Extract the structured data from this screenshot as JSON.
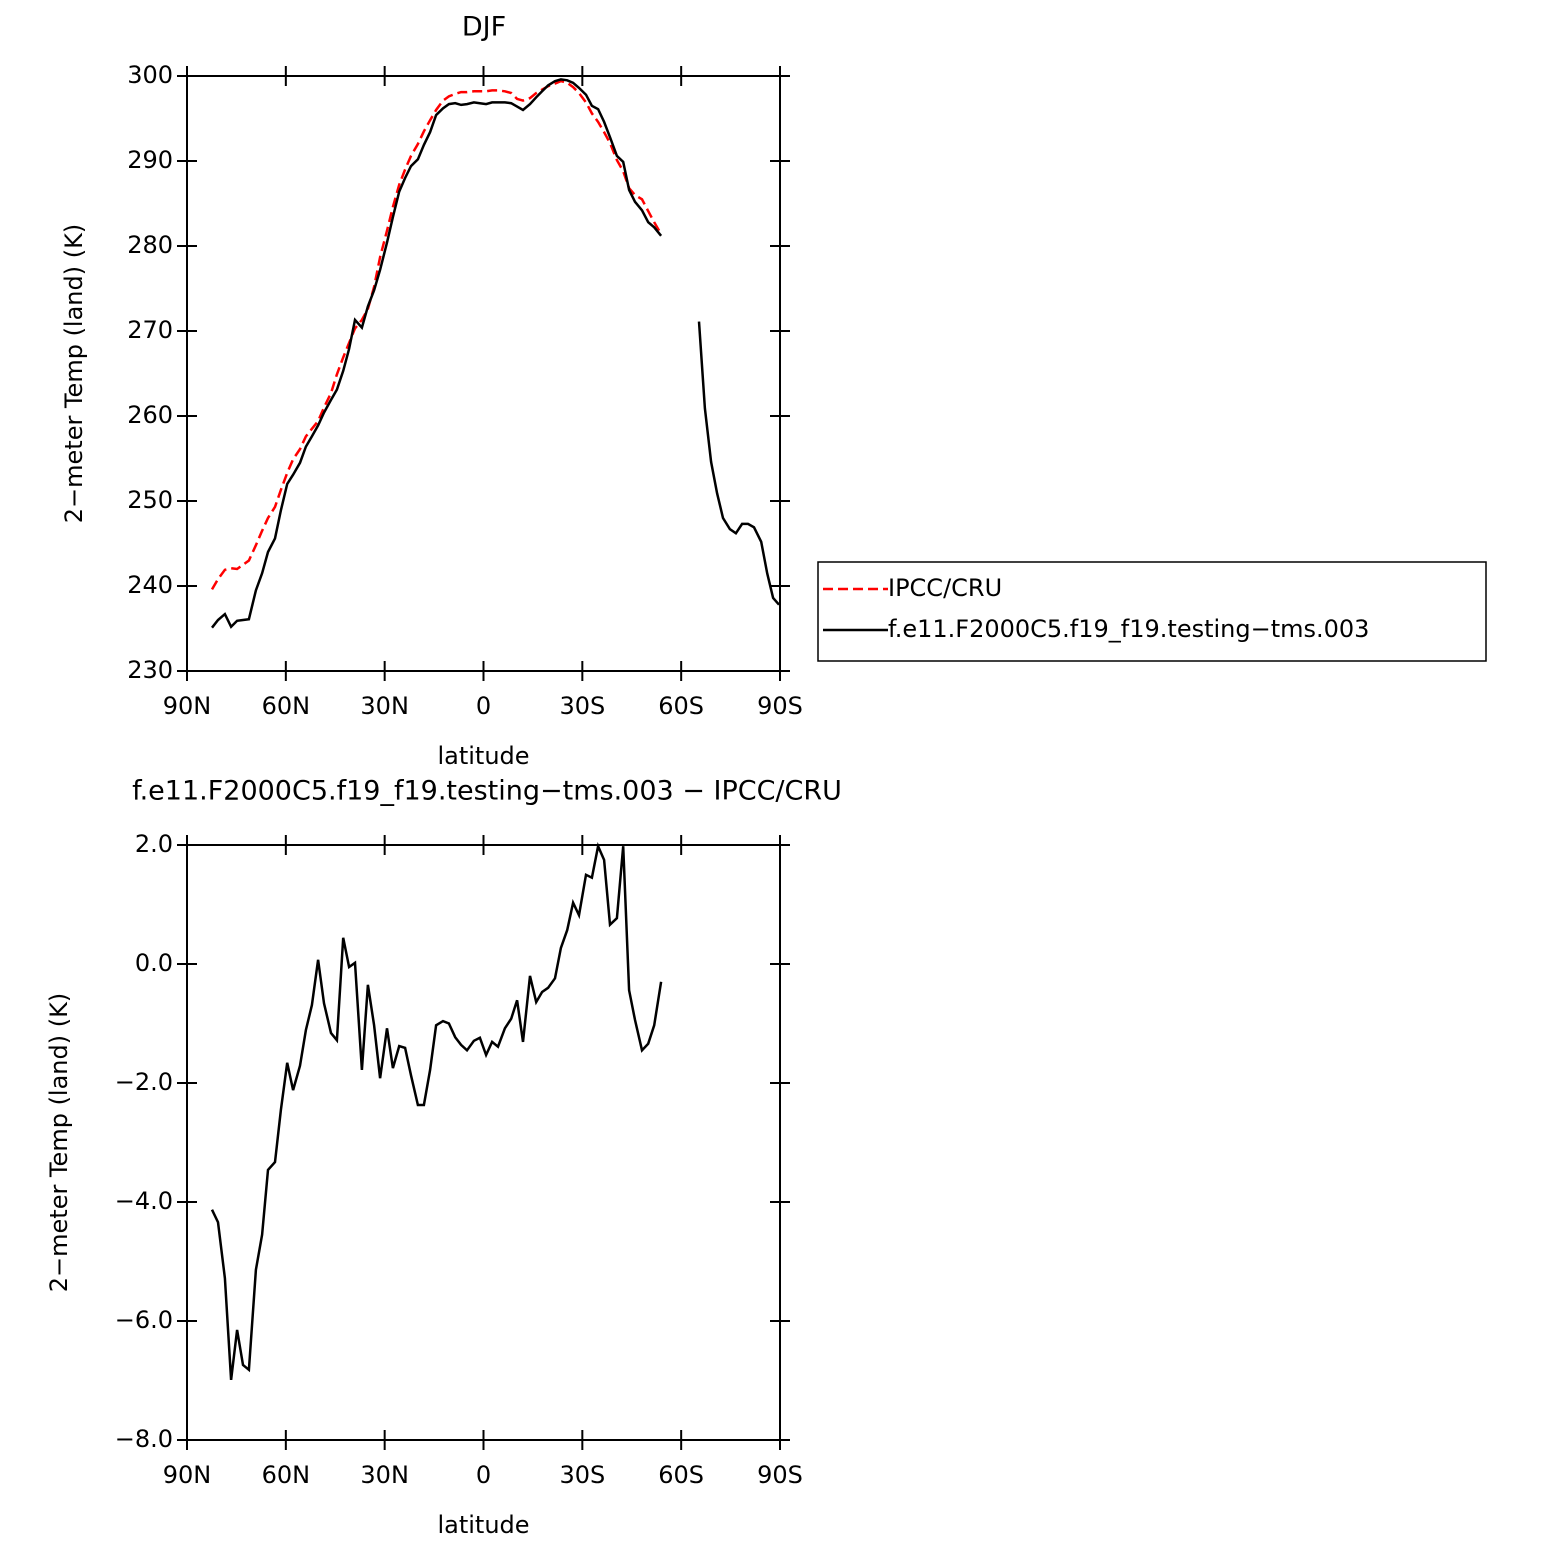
{
  "chart_data": [
    {
      "type": "line",
      "title": "DJF",
      "xlabel": "latitude",
      "ylabel": "2−meter Temp (land) (K)",
      "x": [
        82.4,
        80.6,
        78.5,
        76.6,
        74.8,
        73.0,
        71.2,
        69.1,
        67.2,
        65.4,
        63.3,
        61.5,
        59.6,
        57.8,
        55.7,
        53.9,
        52.1,
        50.2,
        48.4,
        46.3,
        44.5,
        42.6,
        40.8,
        39.0,
        36.9,
        35.1,
        33.2,
        31.4,
        29.3,
        27.5,
        25.6,
        23.8,
        22.0,
        19.9,
        18.1,
        16.2,
        14.4,
        12.3,
        10.5,
        8.6,
        6.8,
        5.0,
        2.9,
        1.1,
        -0.8,
        -2.6,
        -4.4,
        -6.5,
        -8.4,
        -10.2,
        -12.0,
        -14.1,
        -16.0,
        -17.8,
        -19.6,
        -21.7,
        -23.5,
        -25.4,
        -27.2,
        -29.0,
        -31.1,
        -32.9,
        -34.8,
        -36.6,
        -38.4,
        -40.5,
        -42.4,
        -44.2,
        -46.0,
        -48.1,
        -50.0,
        -51.8,
        -53.9,
        -59.6,
        -65.4,
        -67.2,
        -69.1,
        -70.9,
        -72.7,
        -74.8,
        -76.6,
        -78.5,
        -80.3,
        -82.1,
        -84.3,
        -86.1,
        -87.9,
        -89.7
      ],
      "series": [
        {
          "name": "IPCC/CRU",
          "color": "#ff0000",
          "linestyle": "dashed",
          "values": [
            239.6,
            240.8,
            241.9,
            242.1,
            242.0,
            242.5,
            243.0,
            244.8,
            246.5,
            248.0,
            249.3,
            251.3,
            253.3,
            254.9,
            256.1,
            257.6,
            258.5,
            259.4,
            261.0,
            262.7,
            264.9,
            266.9,
            268.6,
            270.3,
            271.3,
            272.6,
            275.2,
            278.7,
            281.8,
            284.6,
            287.2,
            289.0,
            290.6,
            292.0,
            293.5,
            294.8,
            296.0,
            297.1,
            297.6,
            297.9,
            298.1,
            298.1,
            298.2,
            298.2,
            298.2,
            298.3,
            298.3,
            298.2,
            298.0,
            297.3,
            297.1,
            297.4,
            298.0,
            298.4,
            298.8,
            299.1,
            299.4,
            299.2,
            298.7,
            298.0,
            296.9,
            295.6,
            294.6,
            293.4,
            292.1,
            290.1,
            288.8,
            286.8,
            286.0,
            285.5,
            284.1,
            282.8,
            281.4,
            null,
            null,
            null,
            null,
            null,
            null,
            null,
            null,
            null,
            null,
            null,
            null,
            null,
            null,
            null
          ]
        },
        {
          "name": "f.e11.F2000C5.f19_f19.testing−tms.003",
          "color": "#000000",
          "linestyle": "solid",
          "values": [
            235.1,
            236.0,
            236.7,
            235.2,
            235.9,
            236.0,
            236.1,
            239.5,
            241.5,
            244.0,
            245.6,
            248.9,
            252.0,
            253.1,
            254.5,
            256.4,
            257.6,
            258.9,
            260.4,
            261.9,
            263.1,
            265.3,
            267.9,
            271.3,
            270.4,
            272.9,
            274.8,
            277.2,
            280.4,
            283.4,
            286.4,
            288.0,
            289.4,
            290.2,
            291.9,
            293.4,
            295.4,
            296.2,
            296.7,
            296.8,
            296.6,
            296.7,
            296.9,
            296.8,
            296.7,
            296.9,
            296.9,
            296.9,
            296.8,
            296.4,
            296.0,
            296.7,
            297.5,
            298.2,
            298.9,
            299.4,
            299.6,
            299.5,
            299.2,
            298.6,
            297.8,
            296.5,
            296.1,
            294.6,
            292.8,
            290.6,
            289.9,
            286.6,
            285.2,
            284.2,
            282.8,
            282.2,
            281.2,
            null,
            271.1,
            260.9,
            254.6,
            250.9,
            248.0,
            246.7,
            246.2,
            247.3,
            247.3,
            246.9,
            245.2,
            241.5,
            238.6,
            237.8
          ]
        }
      ],
      "xlim": [
        90,
        -90
      ],
      "xticks": [
        {
          "value": 90,
          "label": "90N"
        },
        {
          "value": 60,
          "label": "60N"
        },
        {
          "value": 30,
          "label": "30N"
        },
        0,
        {
          "value": -30,
          "label": "30S"
        },
        {
          "value": -60,
          "label": "60S"
        },
        {
          "value": -90,
          "label": "90S"
        }
      ],
      "ylim": [
        230,
        300
      ],
      "yticks": [
        230,
        240,
        250,
        260,
        270,
        280,
        290,
        300
      ],
      "grid": false,
      "legend": "right"
    },
    {
      "type": "line",
      "title": "f.e11.F2000C5.f19_f19.testing−tms.003 − IPCC/CRU",
      "xlabel": "latitude",
      "ylabel": "2−meter Temp (land) (K)",
      "x": [
        82.4,
        80.6,
        78.5,
        76.6,
        74.8,
        73.0,
        71.2,
        69.1,
        67.2,
        65.4,
        63.3,
        61.5,
        59.6,
        57.8,
        55.7,
        53.9,
        52.1,
        50.2,
        48.4,
        46.3,
        44.5,
        42.6,
        40.8,
        39.0,
        36.9,
        35.1,
        33.2,
        31.4,
        29.3,
        27.5,
        25.6,
        23.8,
        22.0,
        19.9,
        18.1,
        16.2,
        14.4,
        12.3,
        10.5,
        8.6,
        6.8,
        5.0,
        2.9,
        1.1,
        -0.8,
        -2.6,
        -4.4,
        -6.5,
        -8.4,
        -10.2,
        -12.0,
        -14.1,
        -16.0,
        -17.8,
        -19.6,
        -21.7,
        -23.5,
        -25.4,
        -27.2,
        -29.0,
        -31.1,
        -32.9,
        -34.8,
        -36.6,
        -38.4,
        -40.5,
        -42.4,
        -44.2,
        -46.0,
        -48.1,
        -50.0,
        -51.8,
        -53.9
      ],
      "series": [
        {
          "color": "#000000",
          "linestyle": "solid",
          "values": [
            -4.13,
            -4.34,
            -5.28,
            -6.99,
            -6.15,
            -6.74,
            -6.82,
            -5.14,
            -4.55,
            -3.46,
            -3.33,
            -2.45,
            -1.66,
            -2.12,
            -1.71,
            -1.11,
            -0.69,
            0.07,
            -0.66,
            -1.16,
            -1.28,
            0.44,
            -0.05,
            0.02,
            -1.78,
            -0.35,
            -1.03,
            -1.92,
            -1.08,
            -1.75,
            -1.38,
            -1.41,
            -1.87,
            -2.37,
            -2.37,
            -1.78,
            -1.03,
            -0.96,
            -1.0,
            -1.23,
            -1.36,
            -1.45,
            -1.29,
            -1.24,
            -1.53,
            -1.31,
            -1.39,
            -1.08,
            -0.92,
            -0.61,
            -1.31,
            -0.2,
            -0.64,
            -0.47,
            -0.4,
            -0.24,
            0.27,
            0.57,
            1.03,
            0.82,
            1.5,
            1.45,
            1.98,
            1.75,
            0.66,
            0.77,
            1.98,
            -0.44,
            -0.94,
            -1.45,
            -1.34,
            -1.03,
            -0.3
          ]
        }
      ],
      "xlim": [
        90,
        -90
      ],
      "xticks": [
        {
          "value": 90,
          "label": "90N"
        },
        {
          "value": 60,
          "label": "60N"
        },
        {
          "value": 30,
          "label": "30N"
        },
        0,
        {
          "value": -30,
          "label": "30S"
        },
        {
          "value": -60,
          "label": "60S"
        },
        {
          "value": -90,
          "label": "90S"
        }
      ],
      "ylim": [
        -8,
        2
      ],
      "yticks": [
        {
          "value": -8,
          "label": "−8.0"
        },
        {
          "value": -6,
          "label": "−6.0"
        },
        {
          "value": -4,
          "label": "−4.0"
        },
        {
          "value": -2,
          "label": "−2.0"
        },
        {
          "value": 0,
          "label": "0.0"
        },
        {
          "value": 2,
          "label": "2.0"
        }
      ],
      "grid": false
    }
  ]
}
